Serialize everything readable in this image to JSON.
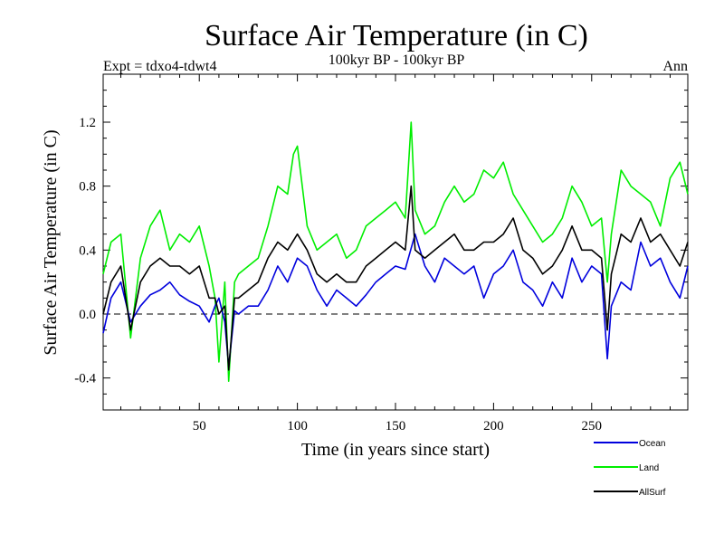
{
  "chart_data": {
    "type": "line",
    "title": "Surface Air Temperature (in C)",
    "subtitle": "100kyr BP - 100kyr BP",
    "experiment": "Expt = tdxo4-tdwt4",
    "season": "Ann",
    "xlabel": "Time (in years since start)",
    "ylabel": "Surface Air Temperature (in C)",
    "xlim": [
      1,
      299
    ],
    "ylim": [
      -0.6,
      1.5
    ],
    "xticks": [
      50,
      100,
      150,
      200,
      250
    ],
    "xtick_labels": [
      "50",
      "100",
      "150",
      "200",
      "250"
    ],
    "yticks": [
      -0.4,
      0.0,
      0.4,
      0.8,
      1.2
    ],
    "ytick_labels": [
      "-0.4",
      "0.0",
      "0.4",
      "0.8",
      "1.2"
    ],
    "zero_line": 0.0,
    "series": [
      {
        "name": "Ocean",
        "color": "#0000dd",
        "x": [
          1,
          5,
          10,
          15,
          20,
          25,
          30,
          35,
          40,
          45,
          50,
          55,
          58,
          60,
          63,
          65,
          68,
          70,
          75,
          80,
          85,
          90,
          95,
          100,
          105,
          110,
          115,
          120,
          125,
          130,
          135,
          140,
          145,
          150,
          155,
          160,
          165,
          170,
          175,
          180,
          185,
          190,
          195,
          200,
          205,
          210,
          215,
          220,
          225,
          230,
          235,
          240,
          245,
          250,
          255,
          258,
          260,
          265,
          270,
          275,
          280,
          285,
          290,
          295,
          299
        ],
        "y": [
          -0.12,
          0.1,
          0.2,
          -0.05,
          0.05,
          0.12,
          0.15,
          0.2,
          0.12,
          0.08,
          0.05,
          -0.05,
          0.05,
          0.1,
          -0.05,
          -0.33,
          0.02,
          0.0,
          0.05,
          0.05,
          0.15,
          0.3,
          0.2,
          0.35,
          0.3,
          0.15,
          0.05,
          0.15,
          0.1,
          0.05,
          0.12,
          0.2,
          0.25,
          0.3,
          0.28,
          0.5,
          0.3,
          0.2,
          0.35,
          0.3,
          0.25,
          0.3,
          0.1,
          0.25,
          0.3,
          0.4,
          0.2,
          0.15,
          0.05,
          0.2,
          0.1,
          0.35,
          0.2,
          0.3,
          0.25,
          -0.28,
          0.05,
          0.2,
          0.15,
          0.45,
          0.3,
          0.35,
          0.2,
          0.1,
          0.3
        ]
      },
      {
        "name": "Land",
        "color": "#00ee00",
        "x": [
          1,
          5,
          10,
          15,
          20,
          25,
          30,
          35,
          40,
          45,
          50,
          55,
          58,
          60,
          63,
          65,
          68,
          70,
          75,
          80,
          85,
          90,
          95,
          98,
          100,
          105,
          110,
          115,
          120,
          125,
          130,
          135,
          140,
          145,
          150,
          155,
          158,
          160,
          165,
          170,
          175,
          180,
          185,
          190,
          195,
          200,
          205,
          210,
          215,
          220,
          225,
          230,
          235,
          240,
          245,
          250,
          255,
          258,
          260,
          265,
          270,
          275,
          280,
          285,
          290,
          295,
          299
        ],
        "y": [
          0.25,
          0.45,
          0.5,
          -0.15,
          0.35,
          0.55,
          0.65,
          0.4,
          0.5,
          0.45,
          0.55,
          0.3,
          0.1,
          -0.3,
          0.2,
          -0.42,
          0.2,
          0.25,
          0.3,
          0.35,
          0.55,
          0.8,
          0.75,
          1.0,
          1.05,
          0.55,
          0.4,
          0.45,
          0.5,
          0.35,
          0.4,
          0.55,
          0.6,
          0.65,
          0.7,
          0.6,
          1.2,
          0.65,
          0.5,
          0.55,
          0.7,
          0.8,
          0.7,
          0.75,
          0.9,
          0.85,
          0.95,
          0.75,
          0.65,
          0.55,
          0.45,
          0.5,
          0.6,
          0.8,
          0.7,
          0.55,
          0.6,
          0.2,
          0.5,
          0.9,
          0.8,
          0.75,
          0.7,
          0.55,
          0.85,
          0.95,
          0.75
        ]
      },
      {
        "name": "AllSurf",
        "color": "#000000",
        "x": [
          1,
          5,
          10,
          15,
          20,
          25,
          30,
          35,
          40,
          45,
          50,
          55,
          58,
          60,
          63,
          65,
          68,
          70,
          75,
          80,
          85,
          90,
          95,
          100,
          105,
          110,
          115,
          120,
          125,
          130,
          135,
          140,
          145,
          150,
          155,
          158,
          160,
          165,
          170,
          175,
          180,
          185,
          190,
          195,
          200,
          205,
          210,
          215,
          220,
          225,
          230,
          235,
          240,
          245,
          250,
          255,
          258,
          260,
          265,
          270,
          275,
          280,
          285,
          290,
          295,
          299
        ],
        "y": [
          0.0,
          0.2,
          0.3,
          -0.1,
          0.2,
          0.3,
          0.35,
          0.3,
          0.3,
          0.25,
          0.3,
          0.1,
          0.1,
          0.0,
          0.05,
          -0.35,
          0.1,
          0.1,
          0.15,
          0.2,
          0.35,
          0.45,
          0.4,
          0.5,
          0.4,
          0.25,
          0.2,
          0.25,
          0.2,
          0.2,
          0.3,
          0.35,
          0.4,
          0.45,
          0.4,
          0.8,
          0.4,
          0.35,
          0.4,
          0.45,
          0.5,
          0.4,
          0.4,
          0.45,
          0.45,
          0.5,
          0.6,
          0.4,
          0.35,
          0.25,
          0.3,
          0.4,
          0.55,
          0.4,
          0.4,
          0.35,
          -0.1,
          0.25,
          0.5,
          0.45,
          0.6,
          0.45,
          0.5,
          0.4,
          0.3,
          0.45
        ]
      }
    ]
  }
}
